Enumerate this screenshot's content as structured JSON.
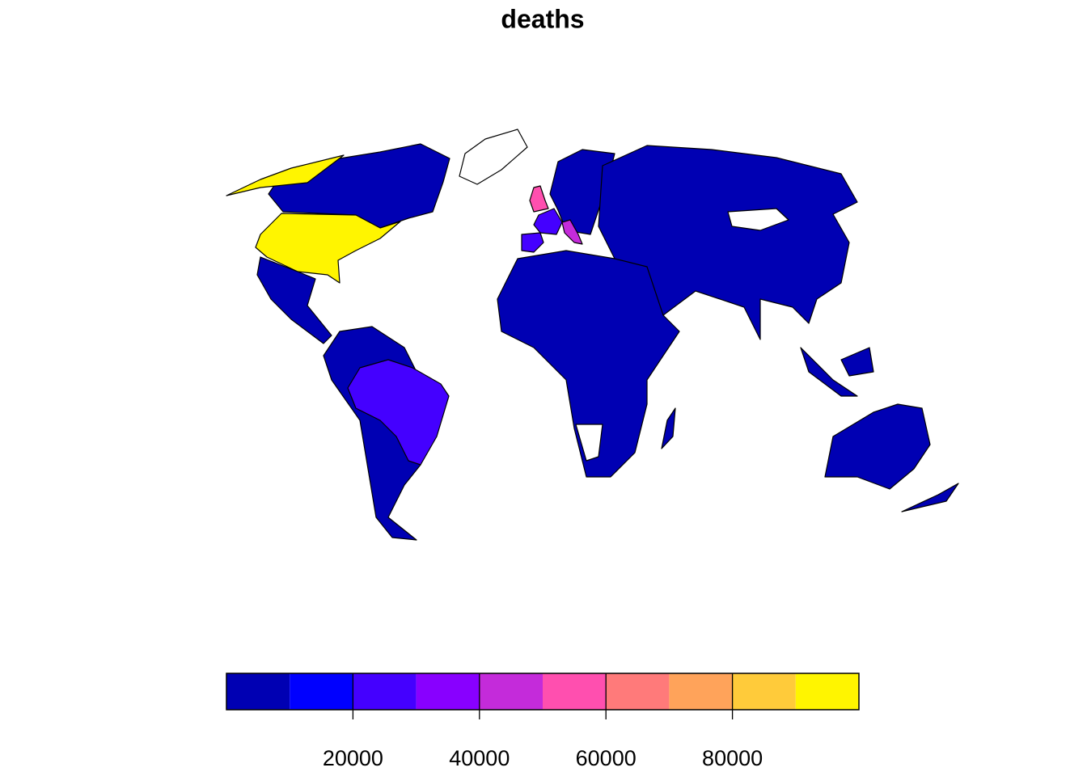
{
  "map": {
    "title": "deaths",
    "legend": {
      "lim": [
        0,
        100000
      ],
      "breaks": [
        0,
        10000,
        20000,
        30000,
        40000,
        50000,
        60000,
        70000,
        80000,
        90000,
        100000
      ],
      "colors": [
        "#0000B3",
        "#0000FF",
        "#4400FF",
        "#8800FF",
        "#C42BDA",
        "#FF4FAF",
        "#FF7A7A",
        "#FFA35A",
        "#FFCB3A",
        "#FFF500"
      ],
      "ticks": [
        20000,
        40000,
        60000,
        80000
      ]
    }
  }
}
